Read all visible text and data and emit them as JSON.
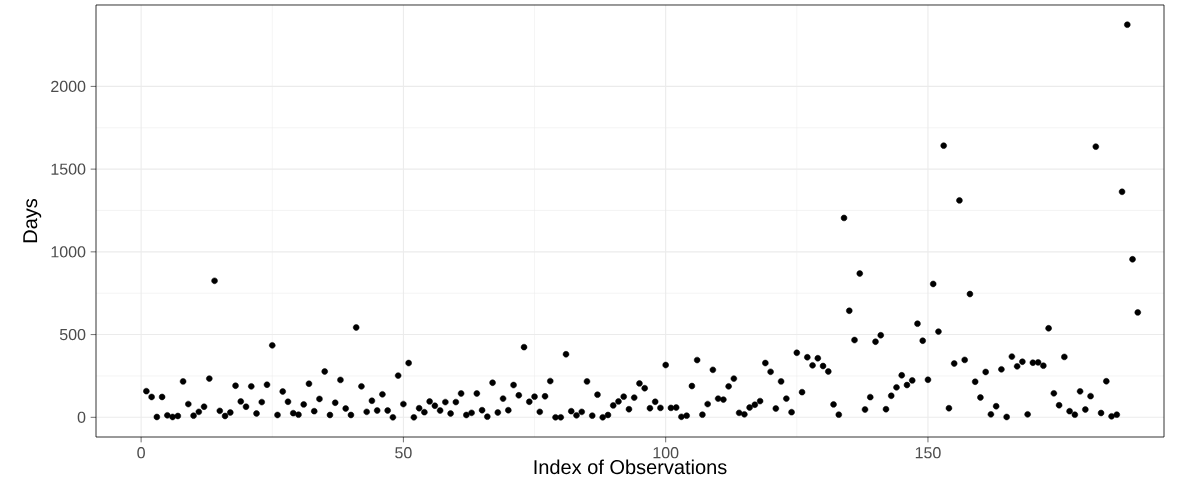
{
  "chart_data": {
    "type": "scatter",
    "xlabel": "Index of Observations",
    "ylabel": "Days",
    "x": [
      1,
      2,
      3,
      4,
      5,
      6,
      7,
      8,
      9,
      10,
      11,
      12,
      13,
      14,
      15,
      16,
      17,
      18,
      19,
      20,
      21,
      22,
      23,
      24,
      25,
      26,
      27,
      28,
      29,
      30,
      31,
      32,
      33,
      34,
      35,
      36,
      37,
      38,
      39,
      40,
      41,
      42,
      43,
      44,
      45,
      46,
      47,
      48,
      49,
      50,
      51,
      52,
      53,
      54,
      55,
      56,
      57,
      58,
      59,
      60,
      61,
      62,
      63,
      64,
      65,
      66,
      67,
      68,
      69,
      70,
      71,
      72,
      73,
      74,
      75,
      76,
      77,
      78,
      79,
      80,
      81,
      82,
      83,
      84,
      85,
      86,
      87,
      88,
      89,
      90,
      91,
      92,
      93,
      94,
      95,
      96,
      97,
      98,
      99,
      100,
      101,
      102,
      103,
      104,
      105,
      106,
      107,
      108,
      109,
      110,
      111,
      112,
      113,
      114,
      115,
      116,
      117,
      118,
      119,
      120,
      121,
      122,
      123,
      124,
      125,
      126,
      127,
      128,
      129,
      130,
      131,
      132,
      133,
      134,
      135,
      136,
      137,
      138,
      139,
      140,
      141,
      142,
      143,
      144,
      145,
      146,
      147,
      148,
      149,
      150,
      151,
      152,
      153,
      154,
      155,
      156,
      157,
      158,
      159,
      160,
      161,
      162,
      163,
      164,
      165,
      166,
      167,
      168,
      169,
      170,
      171,
      172,
      173,
      174,
      175,
      176,
      177,
      178,
      179,
      180,
      181,
      182,
      183,
      184,
      185,
      186,
      187,
      188,
      189,
      190
    ],
    "values": [
      158,
      123,
      2,
      123,
      12,
      2,
      8,
      217,
      80,
      10,
      33,
      64,
      234,
      825,
      39,
      8,
      29,
      191,
      96,
      64,
      187,
      23,
      92,
      197,
      435,
      14,
      156,
      94,
      25,
      16,
      78,
      203,
      37,
      111,
      277,
      14,
      88,
      226,
      53,
      14,
      543,
      187,
      33,
      100,
      41,
      139,
      41,
      0,
      252,
      80,
      328,
      0,
      55,
      31,
      96,
      70,
      41,
      92,
      23,
      92,
      144,
      14,
      27,
      144,
      43,
      4,
      209,
      29,
      113,
      43,
      195,
      133,
      424,
      94,
      125,
      33,
      127,
      219,
      0,
      0,
      381,
      37,
      12,
      33,
      217,
      10,
      137,
      0,
      14,
      72,
      96,
      125,
      49,
      119,
      205,
      176,
      55,
      94,
      57,
      316,
      57,
      59,
      3,
      10,
      189,
      346,
      16,
      80,
      287,
      113,
      107,
      187,
      234,
      27,
      18,
      59,
      76,
      98,
      328,
      275,
      53,
      217,
      113,
      31,
      390,
      152,
      363,
      314,
      357,
      310,
      277,
      78,
      16,
      1205,
      644,
      467,
      869,
      47,
      122,
      457,
      496,
      49,
      130,
      181,
      254,
      195,
      223,
      566,
      463,
      227,
      806,
      518,
      1642,
      55,
      325,
      1311,
      347,
      745,
      215,
      120,
      274,
      18,
      67,
      290,
      2,
      367,
      308,
      336,
      18,
      330,
      332,
      312,
      538,
      145,
      73,
      365,
      37,
      16,
      157,
      47,
      128,
      1636,
      26,
      218,
      6,
      16,
      1363,
      2373,
      955,
      634
    ],
    "color": "#000000",
    "marker": "circle",
    "xlim": [
      -8.6,
      195
    ],
    "ylim": [
      -119,
      2492
    ],
    "xticks": [
      0,
      50,
      100,
      150
    ],
    "yticks": [
      0,
      500,
      1000,
      1500,
      2000
    ],
    "grid": true
  }
}
